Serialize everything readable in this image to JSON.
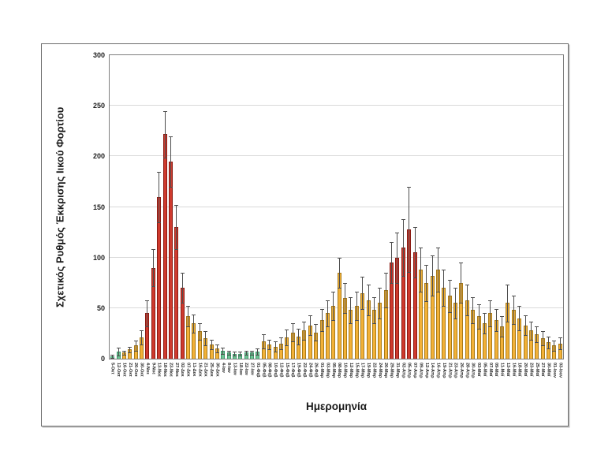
{
  "page": {
    "background": "#ffffff"
  },
  "chart_data": {
    "type": "bar",
    "title": "",
    "xlabel": "Ημερομηνία",
    "ylabel": "Σχετικός Ρυθμός Έκκρισης Ιικού Φορτίου",
    "ylim": [
      0,
      300
    ],
    "yticks": [
      0,
      50,
      100,
      150,
      200,
      250,
      300
    ],
    "grid": "horizontal",
    "legend": "none",
    "error_bars": "symmetric, dark gray with caps",
    "colors": {
      "green": "#6fc493",
      "green_border": "#3b9a6b",
      "yellow": "#f2b138",
      "yellow_border": "#a87a17",
      "red": "#ce3a2e",
      "red_border": "#8b1a12",
      "error": "#4d4d4d",
      "grid": "#d9d9d9",
      "axis": "#7f7f7f",
      "frame": "#6e6e6e",
      "text": "#1f1f1f"
    },
    "points": [
      {
        "label": "5-Οκτ",
        "value": 2,
        "err": 2,
        "color": "green"
      },
      {
        "label": "12-Οκτ",
        "value": 7,
        "err": 4,
        "color": "green"
      },
      {
        "label": "16-Οκτ",
        "value": 6,
        "err": 2,
        "color": "yellow"
      },
      {
        "label": "21-Οκτ",
        "value": 9,
        "err": 3,
        "color": "yellow"
      },
      {
        "label": "26-Οκτ",
        "value": 13,
        "err": 5,
        "color": "yellow"
      },
      {
        "label": "30-Οκτ",
        "value": 21,
        "err": 7,
        "color": "yellow"
      },
      {
        "label": "4-Νοε",
        "value": 45,
        "err": 13,
        "color": "red"
      },
      {
        "label": "9-Νοε",
        "value": 90,
        "err": 18,
        "color": "red"
      },
      {
        "label": "13-Νοε",
        "value": 160,
        "err": 25,
        "color": "red"
      },
      {
        "label": "18-Νοε",
        "value": 222,
        "err": 23,
        "color": "red"
      },
      {
        "label": "23-Νοε",
        "value": 195,
        "err": 25,
        "color": "red"
      },
      {
        "label": "27-Νοε",
        "value": 130,
        "err": 22,
        "color": "red"
      },
      {
        "label": "02-Δεκ",
        "value": 70,
        "err": 15,
        "color": "red"
      },
      {
        "label": "07-Δεκ",
        "value": 42,
        "err": 10,
        "color": "yellow"
      },
      {
        "label": "11-Δεκ",
        "value": 35,
        "err": 9,
        "color": "yellow"
      },
      {
        "label": "16-Δεκ",
        "value": 27,
        "err": 8,
        "color": "yellow"
      },
      {
        "label": "21-Δεκ",
        "value": 20,
        "err": 7,
        "color": "yellow"
      },
      {
        "label": "25-Δεκ",
        "value": 14,
        "err": 5,
        "color": "yellow"
      },
      {
        "label": "30-Δεκ",
        "value": 10,
        "err": 4,
        "color": "yellow"
      },
      {
        "label": "4-Ιαν",
        "value": 8,
        "err": 3,
        "color": "green"
      },
      {
        "label": "8-Ιαν",
        "value": 6,
        "err": 2,
        "color": "green"
      },
      {
        "label": "13-Ιαν",
        "value": 5,
        "err": 2,
        "color": "green"
      },
      {
        "label": "18-Ιαν",
        "value": 5,
        "err": 2,
        "color": "green"
      },
      {
        "label": "22-Ιαν",
        "value": 6,
        "err": 2,
        "color": "green"
      },
      {
        "label": "27-Ιαν",
        "value": 6,
        "err": 2,
        "color": "green"
      },
      {
        "label": "01-Φεβ",
        "value": 7,
        "err": 3,
        "color": "green"
      },
      {
        "label": "05-Φεβ",
        "value": 17,
        "err": 7,
        "color": "yellow"
      },
      {
        "label": "08-Φεβ",
        "value": 14,
        "err": 5,
        "color": "yellow"
      },
      {
        "label": "10-Φεβ",
        "value": 12,
        "err": 5,
        "color": "yellow"
      },
      {
        "label": "12-Φεβ",
        "value": 15,
        "err": 6,
        "color": "yellow"
      },
      {
        "label": "15-Φεβ",
        "value": 21,
        "err": 8,
        "color": "yellow"
      },
      {
        "label": "17-Φεβ",
        "value": 26,
        "err": 9,
        "color": "yellow"
      },
      {
        "label": "19-Φεβ",
        "value": 22,
        "err": 8,
        "color": "yellow"
      },
      {
        "label": "22-Φεβ",
        "value": 28,
        "err": 9,
        "color": "yellow"
      },
      {
        "label": "24-Φεβ",
        "value": 33,
        "err": 10,
        "color": "yellow"
      },
      {
        "label": "26-Φεβ",
        "value": 26,
        "err": 8,
        "color": "yellow"
      },
      {
        "label": "01-Μαρ",
        "value": 38,
        "err": 11,
        "color": "yellow"
      },
      {
        "label": "03-Μαρ",
        "value": 45,
        "err": 13,
        "color": "yellow"
      },
      {
        "label": "05-Μαρ",
        "value": 52,
        "err": 14,
        "color": "yellow"
      },
      {
        "label": "08-Μαρ",
        "value": 85,
        "err": 15,
        "color": "yellow"
      },
      {
        "label": "10-Μαρ",
        "value": 60,
        "err": 15,
        "color": "yellow"
      },
      {
        "label": "12-Μαρ",
        "value": 48,
        "err": 13,
        "color": "yellow"
      },
      {
        "label": "15-Μαρ",
        "value": 52,
        "err": 14,
        "color": "yellow"
      },
      {
        "label": "17-Μαρ",
        "value": 65,
        "err": 16,
        "color": "yellow"
      },
      {
        "label": "19-Μαρ",
        "value": 58,
        "err": 15,
        "color": "yellow"
      },
      {
        "label": "22-Μαρ",
        "value": 48,
        "err": 13,
        "color": "yellow"
      },
      {
        "label": "24-Μαρ",
        "value": 55,
        "err": 15,
        "color": "yellow"
      },
      {
        "label": "26-Μαρ",
        "value": 68,
        "err": 17,
        "color": "yellow"
      },
      {
        "label": "29-Μαρ",
        "value": 95,
        "err": 20,
        "color": "red"
      },
      {
        "label": "31-Μαρ",
        "value": 100,
        "err": 25,
        "color": "red"
      },
      {
        "label": "02-Απρ",
        "value": 110,
        "err": 28,
        "color": "red"
      },
      {
        "label": "05-Απρ",
        "value": 128,
        "err": 42,
        "color": "red"
      },
      {
        "label": "07-Απρ",
        "value": 105,
        "err": 25,
        "color": "red"
      },
      {
        "label": "09-Απρ",
        "value": 88,
        "err": 22,
        "color": "yellow"
      },
      {
        "label": "12-Απρ",
        "value": 75,
        "err": 18,
        "color": "yellow"
      },
      {
        "label": "14-Απρ",
        "value": 82,
        "err": 20,
        "color": "yellow"
      },
      {
        "label": "16-Απρ",
        "value": 88,
        "err": 22,
        "color": "yellow"
      },
      {
        "label": "19-Απρ",
        "value": 70,
        "err": 18,
        "color": "yellow"
      },
      {
        "label": "21-Απρ",
        "value": 62,
        "err": 16,
        "color": "yellow"
      },
      {
        "label": "23-Απρ",
        "value": 55,
        "err": 15,
        "color": "yellow"
      },
      {
        "label": "26-Απρ",
        "value": 75,
        "err": 20,
        "color": "yellow"
      },
      {
        "label": "28-Απρ",
        "value": 58,
        "err": 15,
        "color": "yellow"
      },
      {
        "label": "30-Απρ",
        "value": 48,
        "err": 13,
        "color": "yellow"
      },
      {
        "label": "03-Μαϊ",
        "value": 42,
        "err": 12,
        "color": "yellow"
      },
      {
        "label": "05-Μαϊ",
        "value": 35,
        "err": 10,
        "color": "yellow"
      },
      {
        "label": "07-Μαϊ",
        "value": 45,
        "err": 13,
        "color": "yellow"
      },
      {
        "label": "09-Μαϊ",
        "value": 38,
        "err": 11,
        "color": "yellow"
      },
      {
        "label": "11-Μαϊ",
        "value": 32,
        "err": 10,
        "color": "yellow"
      },
      {
        "label": "13-Μαϊ",
        "value": 55,
        "err": 18,
        "color": "yellow"
      },
      {
        "label": "16-Μαϊ",
        "value": 48,
        "err": 14,
        "color": "yellow"
      },
      {
        "label": "18-Μαϊ",
        "value": 40,
        "err": 12,
        "color": "yellow"
      },
      {
        "label": "20-Μαϊ",
        "value": 33,
        "err": 10,
        "color": "yellow"
      },
      {
        "label": "23-Μαϊ",
        "value": 28,
        "err": 9,
        "color": "yellow"
      },
      {
        "label": "25-Μαϊ",
        "value": 24,
        "err": 8,
        "color": "yellow"
      },
      {
        "label": "27-Μαϊ",
        "value": 20,
        "err": 7,
        "color": "yellow"
      },
      {
        "label": "30-Μαϊ",
        "value": 16,
        "err": 6,
        "color": "yellow"
      },
      {
        "label": "01-Ιουν",
        "value": 13,
        "err": 5,
        "color": "yellow"
      },
      {
        "label": "03-Ιουν",
        "value": 15,
        "err": 6,
        "color": "yellow"
      }
    ]
  }
}
